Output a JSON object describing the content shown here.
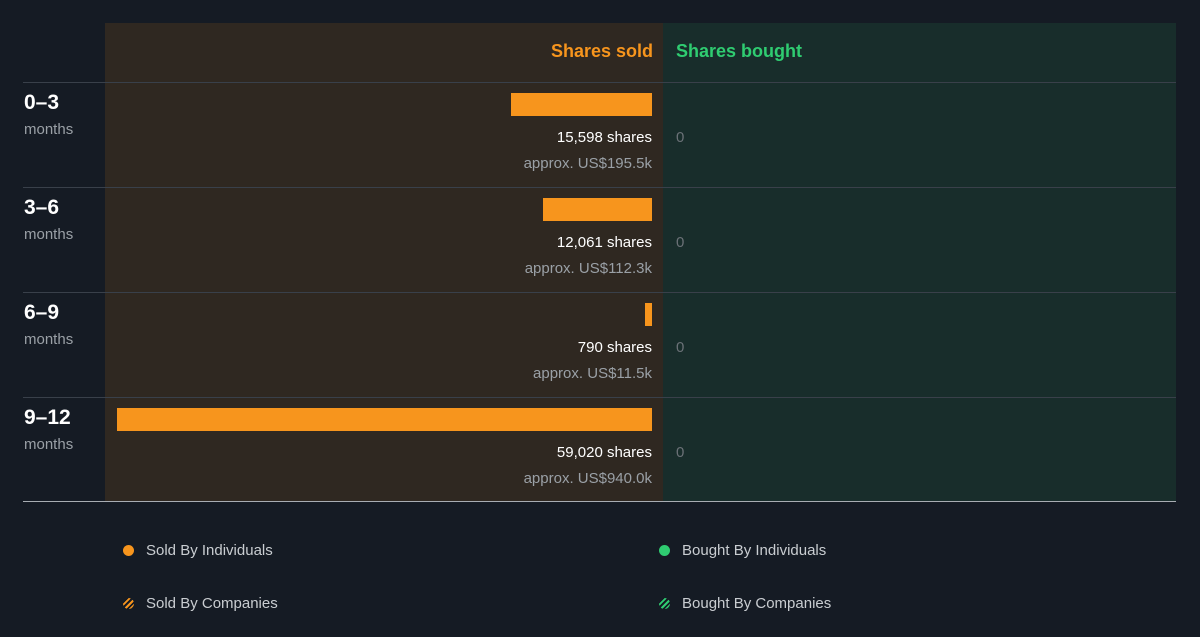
{
  "chart_data": {
    "type": "bar",
    "orientation": "horizontal",
    "columns": {
      "sold": "Shares sold",
      "bought": "Shares bought"
    },
    "periods": [
      {
        "range": "0–3",
        "unit": "months",
        "sold_shares": 15598,
        "sold_shares_label": "15,598 shares",
        "sold_value_label": "approx. US$195.5k",
        "bought_label": "0"
      },
      {
        "range": "3–6",
        "unit": "months",
        "sold_shares": 12061,
        "sold_shares_label": "12,061 shares",
        "sold_value_label": "approx. US$112.3k",
        "bought_label": "0"
      },
      {
        "range": "6–9",
        "unit": "months",
        "sold_shares": 790,
        "sold_shares_label": "790 shares",
        "sold_value_label": "approx. US$11.5k",
        "bought_label": "0"
      },
      {
        "range": "9–12",
        "unit": "months",
        "sold_shares": 59020,
        "sold_shares_label": "59,020 shares",
        "sold_value_label": "approx. US$940.0k",
        "bought_label": "0"
      }
    ],
    "legend": [
      {
        "label": "Sold By Individuals",
        "marker": "dot",
        "color": "#f7951d"
      },
      {
        "label": "Bought By Individuals",
        "marker": "dot",
        "color": "#2fcc71"
      },
      {
        "label": "Sold By Companies",
        "marker": "striped-dot",
        "color": "#f7951d"
      },
      {
        "label": "Bought By Companies",
        "marker": "striped-dot",
        "color": "#2fcc71"
      }
    ],
    "colors": {
      "sold": "#f7951d",
      "bought": "#2fcc71"
    }
  }
}
